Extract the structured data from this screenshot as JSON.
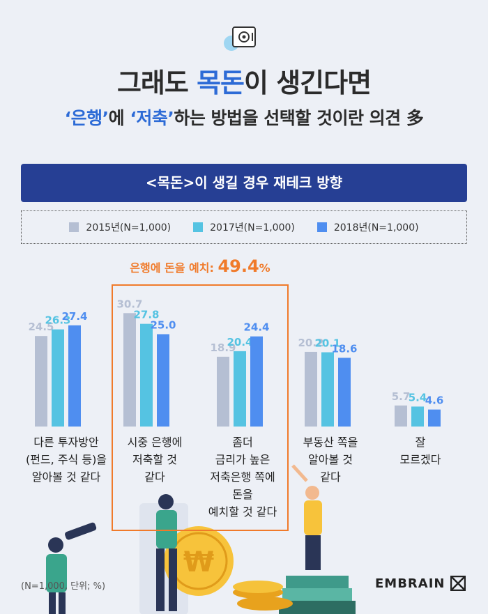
{
  "header": {
    "title_part1": "그래도 ",
    "title_highlight": "목돈",
    "title_part2": "이 생긴다면",
    "subtitle_hl1": "‘은행’",
    "subtitle_mid1": "에 ",
    "subtitle_hl2": "‘저축’",
    "subtitle_rest": "하는 방법을 선택할 것이란 의견 多"
  },
  "banner": {
    "text": "<목돈>이 생길 경우 재테크 방향"
  },
  "callout": {
    "label": "은행에 돈을 예치: ",
    "value": "49.4",
    "unit": "%"
  },
  "footnote": "(N=1,000, 단위; %)",
  "brand": "EMBRAIN",
  "colors": {
    "series2015": "#b5bfd3",
    "series2017": "#55c3e2",
    "series2018": "#4f8ef0",
    "accent": "#f07a2a",
    "banner": "#263f94"
  },
  "chart_data": {
    "type": "bar",
    "categories": [
      "다른 투자방안 (펀드, 주식 등)을 알아볼 것 같다",
      "시중 은행에 저축할 것 같다",
      "좀더 금리가 높은 저축은행 쪽에 돈을 예치할 것 같다",
      "부동산 쪽을 알아볼 것 같다",
      "잘 모르겠다"
    ],
    "category_lines": [
      [
        "다른 투자방안",
        "(펀드, 주식 등)을",
        "알아볼 것 같다"
      ],
      [
        "시중 은행에",
        "저축할 것",
        "같다"
      ],
      [
        "좀더",
        "금리가 높은",
        "저축은행 쪽에",
        "돈을",
        "예치할 것 같다"
      ],
      [
        "부동산 쪽을",
        "알아볼 것",
        "같다"
      ],
      [
        "잘",
        "모르겠다"
      ]
    ],
    "series": [
      {
        "name": "2015년(N=1,000)",
        "values": [
          24.5,
          30.7,
          18.9,
          20.2,
          5.7
        ]
      },
      {
        "name": "2017년(N=1,000)",
        "values": [
          26.3,
          27.8,
          20.4,
          20.1,
          5.4
        ]
      },
      {
        "name": "2018년(N=1,000)",
        "values": [
          27.4,
          25.0,
          24.4,
          18.6,
          4.6
        ]
      }
    ]
  }
}
